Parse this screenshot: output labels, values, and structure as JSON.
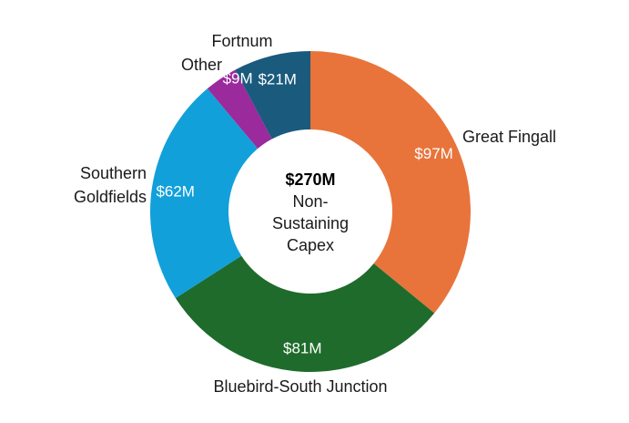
{
  "chart_data": {
    "type": "pie",
    "donut": true,
    "total_label": "$270M",
    "center_lines": [
      "Non-",
      "Sustaining",
      "Capex"
    ],
    "slices": [
      {
        "category_lines": [
          "Great Fingall"
        ],
        "value": 97,
        "value_label": "$97M",
        "color": "#E8743B"
      },
      {
        "category_lines": [
          "Bluebird-South Junction"
        ],
        "value": 81,
        "value_label": "$81M",
        "color": "#1F6B2C"
      },
      {
        "category_lines": [
          "Southern",
          "Goldfields"
        ],
        "value": 62,
        "value_label": "$62M",
        "color": "#12A0DA"
      },
      {
        "category_lines": [
          "Other"
        ],
        "value": 9,
        "value_label": "$9M",
        "color": "#9B2A9C"
      },
      {
        "category_lines": [
          "Fortnum"
        ],
        "value": 21,
        "value_label": "$21M",
        "color": "#1A5A7D"
      }
    ],
    "legend": "none"
  }
}
